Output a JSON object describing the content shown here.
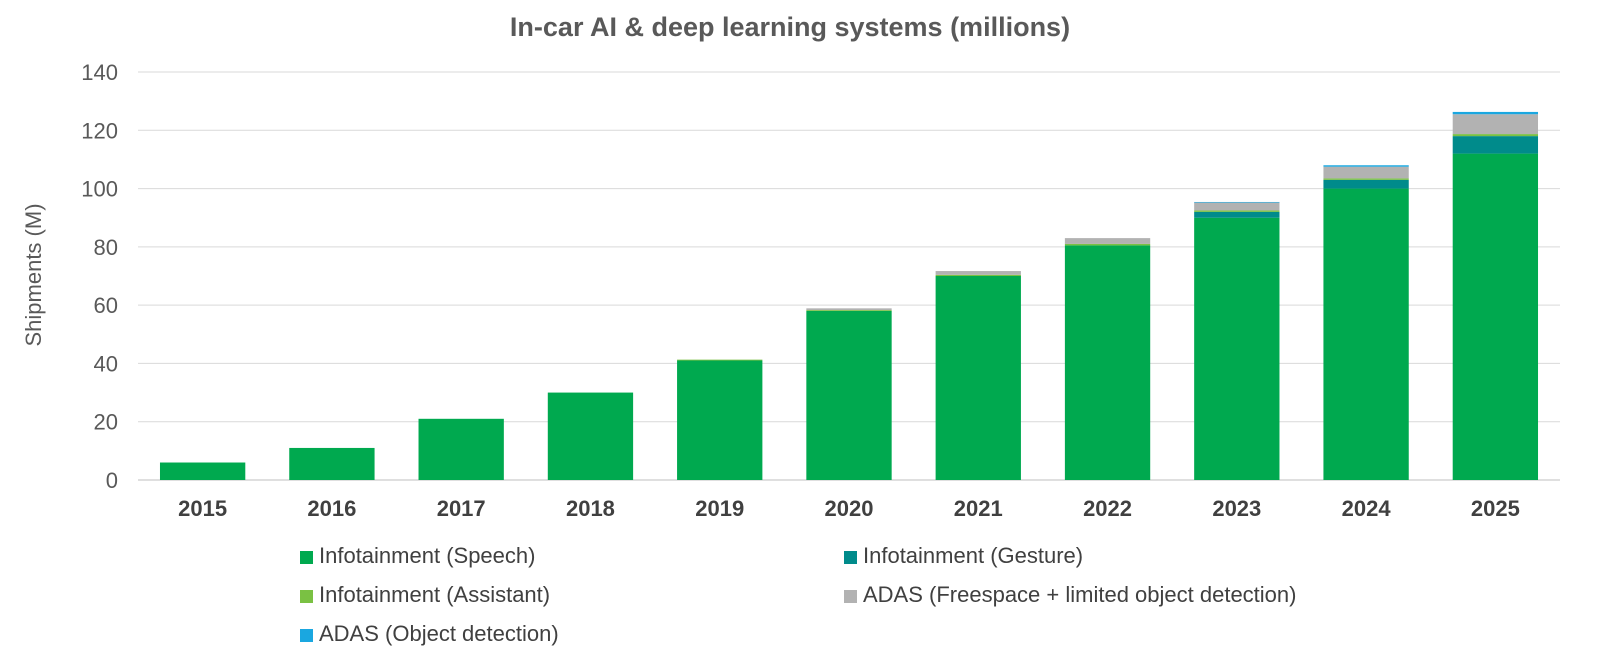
{
  "chart_data": {
    "type": "bar",
    "stacked": true,
    "title": "In-car AI & deep learning systems (millions)",
    "xlabel": "",
    "ylabel": "Shipments (M)",
    "ylim": [
      0,
      140
    ],
    "yticks": [
      0,
      20,
      40,
      60,
      80,
      100,
      120,
      140
    ],
    "grid": true,
    "legend_position": "bottom",
    "categories": [
      "2015",
      "2016",
      "2017",
      "2018",
      "2019",
      "2020",
      "2021",
      "2022",
      "2023",
      "2024",
      "2025"
    ],
    "series": [
      {
        "name": "Infotainment (Speech)",
        "color": "#00a94f",
        "values": [
          6,
          11,
          21,
          30,
          41,
          58,
          70,
          80.5,
          90,
          100,
          112
        ]
      },
      {
        "name": "Infotainment (Gesture)",
        "color": "#008b8b",
        "values": [
          0,
          0,
          0,
          0,
          0,
          0,
          0,
          0,
          2,
          3,
          6
        ]
      },
      {
        "name": "Infotainment (Assistant)",
        "color": "#7ac143",
        "values": [
          0,
          0,
          0,
          0,
          0.3,
          0.3,
          0.4,
          0.5,
          0.5,
          0.5,
          0.7
        ]
      },
      {
        "name": "ADAS (Freespace + limited object detection)",
        "color": "#b2b2b2",
        "values": [
          0,
          0,
          0,
          0,
          0,
          0.6,
          1.3,
          2,
          2.7,
          4,
          6.8
        ]
      },
      {
        "name": "ADAS (Object detection)",
        "color": "#1aa7e0",
        "values": [
          0,
          0,
          0,
          0,
          0,
          0,
          0,
          0,
          0.2,
          0.5,
          0.8
        ]
      }
    ]
  }
}
